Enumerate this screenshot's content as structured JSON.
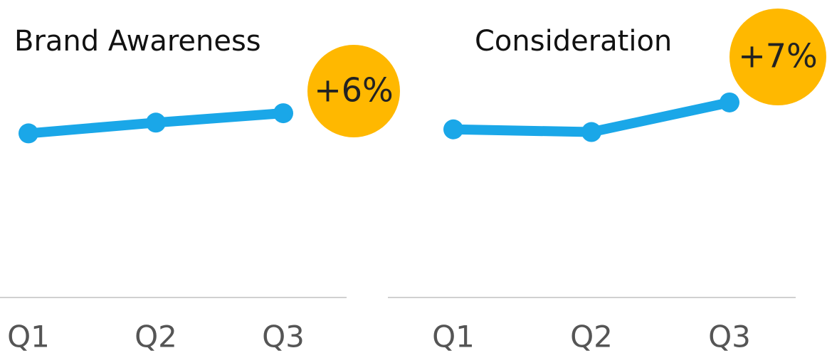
{
  "chart_data": [
    {
      "type": "line",
      "title": "Brand Awareness",
      "annotation": "+6%",
      "categories": [
        "Q1",
        "Q2",
        "Q3"
      ],
      "values": [
        61,
        65,
        68.5
      ],
      "color": "#1aa7e8",
      "badge_color": "#ffb800",
      "ylim": [
        0,
        100
      ]
    },
    {
      "type": "line",
      "title": "Consideration",
      "annotation": "+7%",
      "categories": [
        "Q1",
        "Q2",
        "Q3"
      ],
      "values": [
        62.5,
        61.5,
        72.5
      ],
      "color": "#1aa7e8",
      "badge_color": "#ffb800",
      "ylim": [
        0,
        100
      ]
    }
  ]
}
